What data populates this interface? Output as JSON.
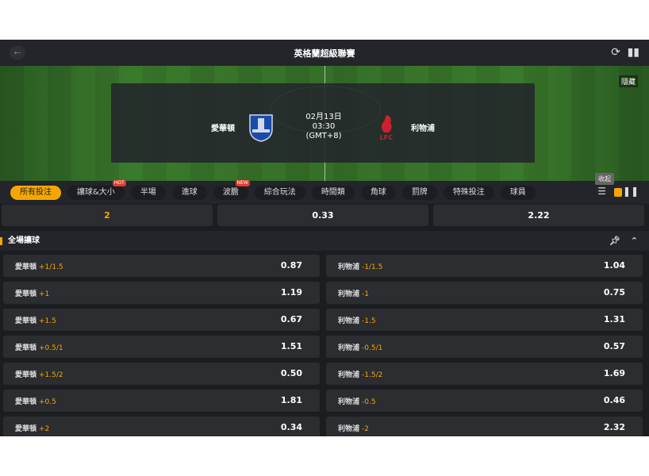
{
  "header": {
    "title": "英格蘭超級聯賽",
    "back_icon": "arrow-left-icon",
    "refresh_icon": "refresh-icon",
    "stats_icon": "bar-chart-icon"
  },
  "banner": {
    "hide_label": "隱藏",
    "home": "愛華頓",
    "away": "利物浦",
    "date": "02月13日",
    "time": "03:30",
    "tz": "(GMT+8)"
  },
  "tabs": [
    {
      "label": "所有投注",
      "active": true
    },
    {
      "label": "讓球&大小",
      "badge": "HOT"
    },
    {
      "label": "半場"
    },
    {
      "label": "進球"
    },
    {
      "label": "波膽",
      "badge": "NEW"
    },
    {
      "label": "綜合玩法"
    },
    {
      "label": "時間類"
    },
    {
      "label": "角球"
    },
    {
      "label": "罰牌"
    },
    {
      "label": "特殊投注"
    },
    {
      "label": "球員"
    }
  ],
  "collapse_tip": "收起",
  "score": [
    "2",
    "0.33",
    "2.22"
  ],
  "section": {
    "title": "全場讓球"
  },
  "rows": [
    {
      "home": {
        "team": "愛華頓",
        "hcp": "+1/1.5",
        "odds": "0.87"
      },
      "away": {
        "team": "利物浦",
        "hcp": "-1/1.5",
        "odds": "1.04"
      }
    },
    {
      "home": {
        "team": "愛華頓",
        "hcp": "+1",
        "odds": "1.19"
      },
      "away": {
        "team": "利物浦",
        "hcp": "-1",
        "odds": "0.75"
      }
    },
    {
      "home": {
        "team": "愛華頓",
        "hcp": "+1.5",
        "odds": "0.67"
      },
      "away": {
        "team": "利物浦",
        "hcp": "-1.5",
        "odds": "1.31"
      }
    },
    {
      "home": {
        "team": "愛華頓",
        "hcp": "+0.5/1",
        "odds": "1.51"
      },
      "away": {
        "team": "利物浦",
        "hcp": "-0.5/1",
        "odds": "0.57"
      }
    },
    {
      "home": {
        "team": "愛華頓",
        "hcp": "+1.5/2",
        "odds": "0.50"
      },
      "away": {
        "team": "利物浦",
        "hcp": "-1.5/2",
        "odds": "1.69"
      }
    },
    {
      "home": {
        "team": "愛華頓",
        "hcp": "+0.5",
        "odds": "1.81"
      },
      "away": {
        "team": "利物浦",
        "hcp": "-0.5",
        "odds": "0.46"
      }
    },
    {
      "home": {
        "team": "愛華頓",
        "hcp": "+2",
        "odds": "0.34"
      },
      "away": {
        "team": "利物浦",
        "hcp": "-2",
        "odds": "2.32"
      }
    }
  ],
  "colors": {
    "accent": "#f5a700",
    "bg": "#1c1d21",
    "card": "#2c2d31"
  }
}
